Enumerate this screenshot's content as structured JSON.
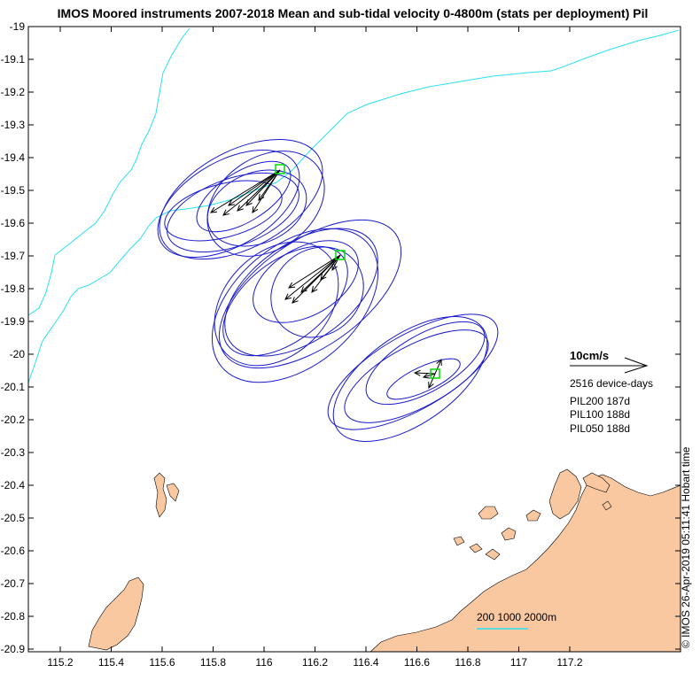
{
  "title": "IMOS Moored instruments 2007-2018 Mean and sub-tidal velocity 0-4800m (stats per deployment) Pil",
  "side_note": "© IMOS 26-Apr-2019 05:11:41 Hobart time",
  "colors": {
    "land": "#f9c8a0",
    "ellipse": "#1a1acc",
    "isobath": "#29e0f0",
    "station": "#00dd00",
    "arrow": "#000000"
  },
  "axes": {
    "x_ticks": [
      "115.2",
      "115.4",
      "115.6",
      "115.8",
      "116",
      "116.2",
      "116.4",
      "116.6",
      "116.8",
      "117",
      "117.2"
    ],
    "y_ticks": [
      "-19",
      "-19.1",
      "-19.2",
      "-19.3",
      "-19.4",
      "-19.5",
      "-19.6",
      "-19.7",
      "-19.8",
      "-19.9",
      "-20",
      "-20.1",
      "-20.2",
      "-20.3",
      "-20.4",
      "-20.5",
      "-20.6",
      "-20.7",
      "-20.8",
      "-20.9"
    ]
  },
  "velocity_scale": {
    "label": "10cm/s",
    "device_days": "2516 device-days"
  },
  "stations": [
    {
      "name": "PIL200",
      "days": "187d",
      "label": "PIL200 187d"
    },
    {
      "name": "PIL100",
      "days": "188d",
      "label": "PIL100 188d"
    },
    {
      "name": "PIL050",
      "days": "188d",
      "label": "PIL050 188d"
    }
  ],
  "isobath_legend": "200 1000 2000m"
}
